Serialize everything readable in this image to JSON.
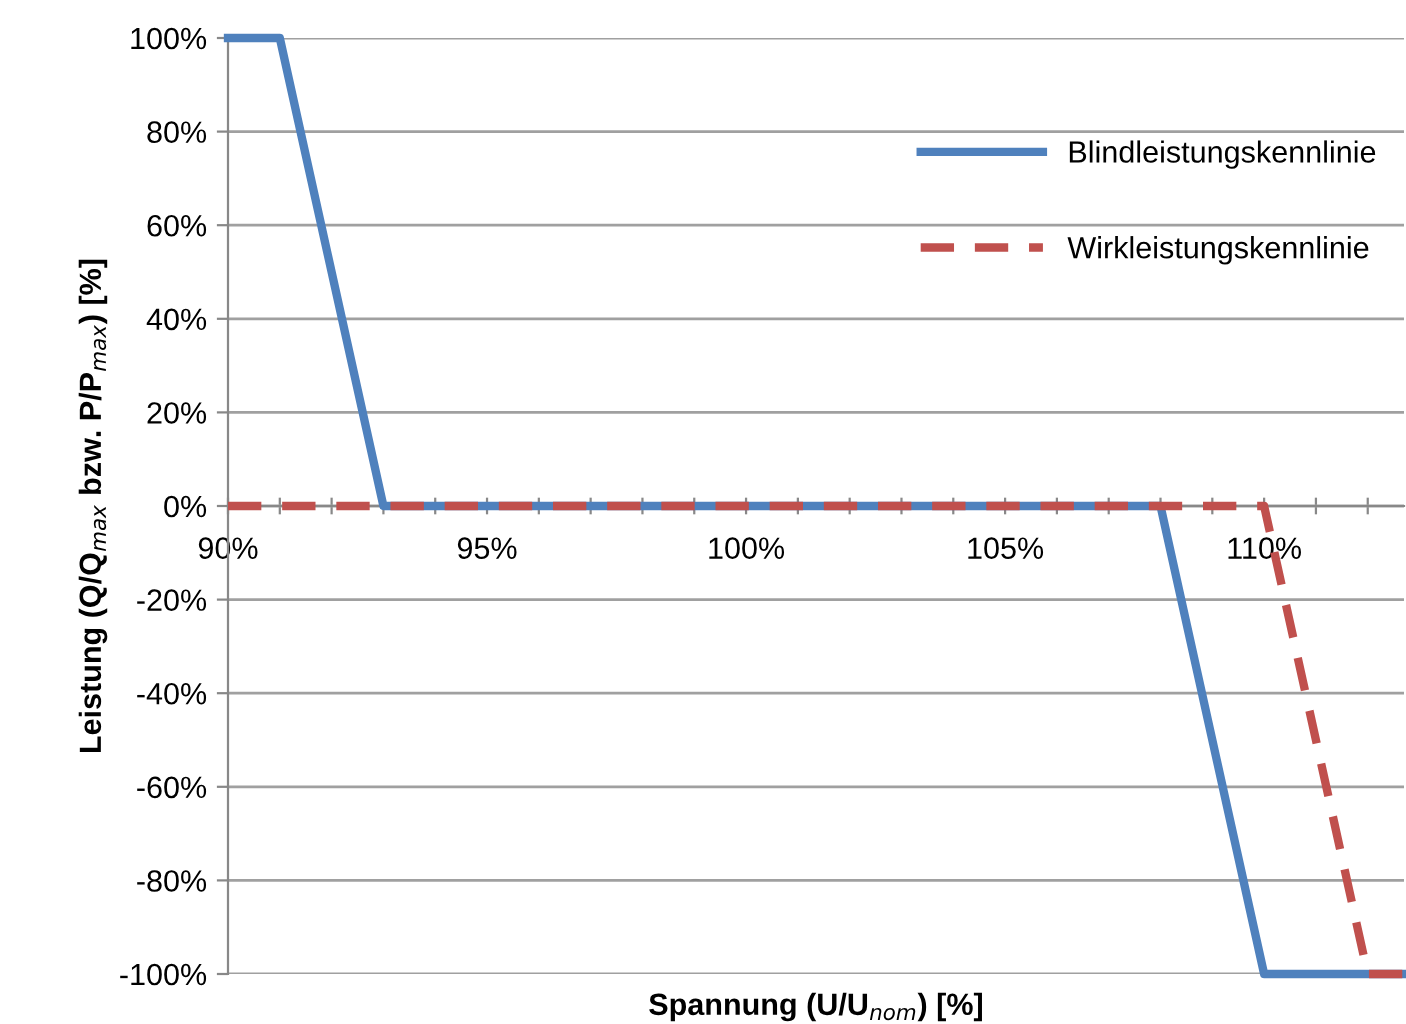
{
  "chart_data": {
    "type": "line",
    "xlabel": "Spannung (U/U$_{nom}$) [%]",
    "ylabel": "Leistung (Q/Q$_{max}$ bzw. P/P$_{max}$) [%]",
    "series": [
      {
        "name": "Blindleistungskennlinie",
        "color": "#4f81bd",
        "line_style": "solid",
        "x": [
          90,
          91,
          93,
          108,
          110,
          112.7
        ],
        "values": [
          100,
          100,
          0,
          0,
          -100,
          -100
        ]
      },
      {
        "name": "Wirkleistungskennlinie",
        "color": "#c0504d",
        "line_style": "dashed",
        "x": [
          90,
          110,
          112,
          112.7
        ],
        "values": [
          0,
          0,
          -100,
          -100
        ]
      }
    ],
    "xlim": [
      90,
      112.7
    ],
    "xticks": [
      {
        "value": 90,
        "label": "90%"
      },
      {
        "value": 91,
        "label": null
      },
      {
        "value": 92,
        "label": null
      },
      {
        "value": 93,
        "label": null
      },
      {
        "value": 94,
        "label": null
      },
      {
        "value": 95,
        "label": "95%"
      },
      {
        "value": 96,
        "label": null
      },
      {
        "value": 97,
        "label": null
      },
      {
        "value": 98,
        "label": null
      },
      {
        "value": 99,
        "label": null
      },
      {
        "value": 100,
        "label": "100%"
      },
      {
        "value": 101,
        "label": null
      },
      {
        "value": 102,
        "label": null
      },
      {
        "value": 103,
        "label": null
      },
      {
        "value": 104,
        "label": null
      },
      {
        "value": 105,
        "label": "105%"
      },
      {
        "value": 106,
        "label": null
      },
      {
        "value": 107,
        "label": null
      },
      {
        "value": 108,
        "label": null
      },
      {
        "value": 109,
        "label": null
      },
      {
        "value": 110,
        "label": "110%"
      },
      {
        "value": 111,
        "label": null
      },
      {
        "value": 112,
        "label": null
      }
    ],
    "ylim": [
      -100,
      100
    ],
    "yticks": [
      {
        "value": -100,
        "label": "-100%"
      },
      {
        "value": -80,
        "label": "-80%"
      },
      {
        "value": -60,
        "label": "-60%"
      },
      {
        "value": -40,
        "label": "-40%"
      },
      {
        "value": -20,
        "label": "-20%"
      },
      {
        "value": 0,
        "label": "0%"
      },
      {
        "value": 20,
        "label": "20%"
      },
      {
        "value": 40,
        "label": "40%"
      },
      {
        "value": 60,
        "label": "60%"
      },
      {
        "value": 80,
        "label": "80%"
      },
      {
        "value": 100,
        "label": "100%"
      }
    ],
    "grid": "y",
    "legend": "top right"
  }
}
